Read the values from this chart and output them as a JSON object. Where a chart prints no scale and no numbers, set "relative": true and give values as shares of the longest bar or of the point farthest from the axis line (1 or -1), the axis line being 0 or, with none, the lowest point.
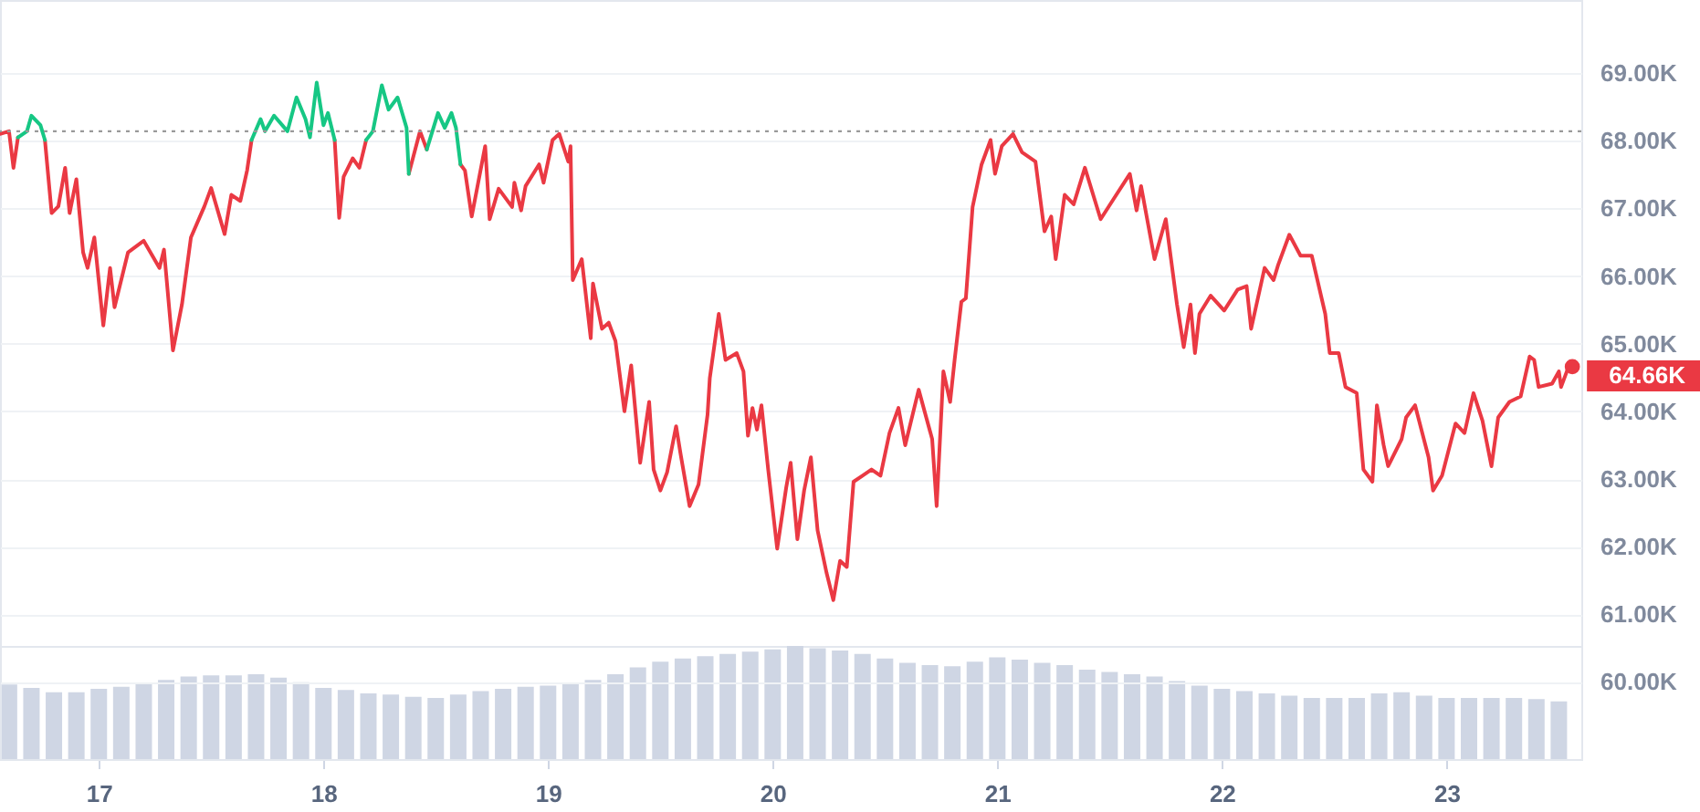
{
  "chart_data": [
    {
      "type": "line",
      "xlim": [
        16.56,
        23.6
      ],
      "xticks": [
        17,
        18,
        19,
        20,
        21,
        22,
        23
      ],
      "ylim": [
        58.86,
        70.08
      ],
      "yticks": [
        {
          "value": 60,
          "label": "60.00K"
        },
        {
          "value": 61,
          "label": "61.00K"
        },
        {
          "value": 62,
          "label": "62.00K"
        },
        {
          "value": 63,
          "label": "63.00K"
        },
        {
          "value": 64,
          "label": "64.00K"
        },
        {
          "value": 65,
          "label": "65.00K"
        },
        {
          "value": 66,
          "label": "66.00K"
        },
        {
          "value": 67,
          "label": "67.00K"
        },
        {
          "value": 68,
          "label": "68.00K"
        },
        {
          "value": 69,
          "label": "69.00K"
        }
      ],
      "grid": "y",
      "tick_labels": "y",
      "ref_lines": [
        {
          "axis": "y",
          "value": 68.14,
          "line_style": "dotted",
          "color": "#9a9a9a"
        }
      ],
      "annotations": [
        {
          "text": "64.66K",
          "x": 23.56,
          "y": 64.66
        }
      ],
      "x": [
        16.56,
        16.6,
        16.62,
        16.64,
        16.68,
        16.7,
        16.74,
        16.76,
        16.79,
        16.82,
        16.85,
        16.87,
        16.9,
        16.93,
        16.95,
        16.98,
        17.02,
        17.05,
        17.07,
        17.13,
        17.2,
        17.27,
        17.29,
        17.33,
        17.37,
        17.41,
        17.47,
        17.5,
        17.56,
        17.59,
        17.63,
        17.66,
        17.68,
        17.72,
        17.74,
        17.78,
        17.84,
        17.88,
        17.92,
        17.94,
        17.97,
        18.0,
        18.02,
        18.05,
        18.07,
        18.09,
        18.13,
        18.16,
        18.19,
        18.22,
        18.26,
        18.29,
        18.33,
        18.37,
        18.38,
        18.43,
        18.46,
        18.51,
        18.54,
        18.57,
        18.59,
        18.61,
        18.63,
        18.66,
        18.72,
        18.74,
        18.78,
        18.84,
        18.85,
        18.88,
        18.9,
        18.96,
        18.98,
        19.02,
        19.05,
        19.09,
        19.1,
        19.11,
        19.15,
        19.19,
        19.2,
        19.24,
        19.27,
        19.3,
        19.34,
        19.37,
        19.41,
        19.45,
        19.47,
        19.5,
        19.53,
        19.57,
        19.59,
        19.63,
        19.67,
        19.71,
        19.72,
        19.76,
        19.79,
        19.84,
        19.87,
        19.89,
        19.91,
        19.93,
        19.95,
        19.98,
        20.02,
        20.06,
        20.08,
        20.11,
        20.14,
        20.17,
        20.2,
        20.24,
        20.27,
        20.3,
        20.33,
        20.36,
        20.4,
        20.44,
        20.48,
        20.52,
        20.56,
        20.59,
        20.65,
        20.71,
        20.73,
        20.76,
        20.79,
        20.81,
        20.84,
        20.86,
        20.89,
        20.93,
        20.97,
        20.99,
        21.02,
        21.07,
        21.11,
        21.17,
        21.21,
        21.24,
        21.26,
        21.3,
        21.34,
        21.39,
        21.46,
        21.52,
        21.59,
        21.62,
        21.64,
        21.7,
        21.75,
        21.8,
        21.83,
        21.86,
        21.88,
        21.9,
        21.95,
        22.01,
        22.07,
        22.11,
        22.13,
        22.19,
        22.23,
        22.25,
        22.3,
        22.35,
        22.4,
        22.46,
        22.48,
        22.52,
        22.55,
        22.6,
        22.63,
        22.67,
        22.69,
        22.72,
        22.74,
        22.8,
        22.82,
        22.86,
        22.92,
        22.94,
        22.98,
        23.04,
        23.08,
        23.12,
        23.16,
        23.2,
        23.23,
        23.28,
        23.33,
        23.37,
        23.39,
        23.41,
        23.47,
        23.5,
        23.51,
        23.54,
        23.56
      ],
      "series": [
        {
          "type": "line",
          "color": "#ea3943",
          "values": [
            68.1,
            68.14,
            67.6,
            68.05,
            null,
            null,
            null,
            68.01,
            66.93,
            67.03,
            67.6,
            66.93,
            67.43,
            66.35,
            66.12,
            66.57,
            65.27,
            66.12,
            65.54,
            66.35,
            66.52,
            66.12,
            66.39,
            64.9,
            65.58,
            66.57,
            67.03,
            67.3,
            66.62,
            67.2,
            67.11,
            67.56,
            68.01,
            null,
            null,
            null,
            null,
            null,
            null,
            null,
            null,
            null,
            null,
            68.01,
            66.86,
            67.47,
            67.74,
            67.6,
            68.01,
            null,
            null,
            null,
            null,
            null,
            67.51,
            68.14,
            67.87,
            null,
            null,
            null,
            null,
            67.65,
            67.56,
            66.88,
            67.92,
            66.84,
            67.29,
            67.02,
            67.38,
            66.97,
            67.33,
            67.65,
            67.38,
            68.01,
            68.1,
            67.69,
            67.92,
            65.94,
            66.25,
            65.08,
            65.89,
            65.22,
            65.31,
            65.04,
            64.0,
            64.68,
            63.24,
            64.14,
            63.14,
            62.83,
            63.1,
            63.78,
            63.37,
            62.6,
            62.92,
            63.95,
            64.49,
            65.44,
            64.76,
            64.86,
            64.59,
            63.64,
            64.05,
            63.73,
            64.09,
            63.14,
            61.97,
            62.87,
            63.24,
            62.11,
            62.83,
            63.32,
            62.24,
            61.61,
            61.21,
            61.79,
            61.7,
            62.96,
            63.05,
            63.14,
            63.05,
            63.68,
            64.05,
            63.5,
            64.32,
            63.59,
            62.6,
            64.59,
            64.14,
            64.76,
            65.62,
            65.67,
            67.02,
            67.65,
            68.01,
            67.51,
            67.92,
            68.1,
            67.83,
            67.69,
            66.66,
            66.88,
            66.25,
            67.2,
            67.06,
            67.6,
            66.84,
            67.15,
            67.51,
            66.97,
            67.33,
            66.25,
            66.84,
            65.58,
            64.95,
            65.58,
            64.86,
            65.44,
            65.71,
            65.49,
            65.8,
            65.85,
            65.22,
            66.12,
            65.94,
            66.16,
            66.61,
            66.3,
            66.3,
            65.44,
            64.86,
            64.86,
            64.36,
            64.27,
            63.14,
            62.96,
            64.09,
            63.5,
            63.19,
            63.59,
            63.91,
            64.09,
            63.32,
            62.83,
            63.05,
            63.82,
            63.68,
            64.27,
            63.86,
            63.19,
            63.91,
            64.14,
            64.22,
            64.81,
            64.76,
            64.36,
            64.41,
            64.59,
            64.36,
            64.63,
            64.66
          ]
        },
        {
          "type": "line",
          "color": "#16c784",
          "x": [
            16.64,
            16.68,
            16.7,
            16.74,
            16.76,
            16.77,
            17.68,
            17.72,
            17.74,
            17.78,
            17.84,
            17.88,
            17.92,
            17.94,
            17.97,
            18.0,
            18.02,
            18.05,
            18.06,
            18.19,
            18.22,
            18.26,
            18.29,
            18.33,
            18.37,
            18.38,
            18.4,
            18.46,
            18.51,
            18.54,
            18.57,
            18.59,
            18.61
          ],
          "values": [
            68.05,
            68.14,
            68.37,
            68.23,
            68.01,
            null,
            68.01,
            68.32,
            68.14,
            68.37,
            68.14,
            68.64,
            68.32,
            68.05,
            68.86,
            68.23,
            68.41,
            68.01,
            null,
            68.01,
            68.14,
            68.82,
            68.46,
            68.64,
            68.19,
            67.51,
            null,
            67.87,
            68.41,
            68.19,
            68.41,
            68.19,
            67.65
          ]
        },
        {
          "type": "scatter",
          "marker": "circle",
          "color": "#ea3943",
          "x": [
            23.56
          ],
          "values": [
            64.66
          ]
        }
      ]
    },
    {
      "type": "bar",
      "relative": true,
      "color": "#cfd6e4",
      "xlim": [
        16.56,
        23.6
      ],
      "xticks": [
        17,
        18,
        19,
        20,
        21,
        22,
        23
      ],
      "tick_labels": "x",
      "x": [
        16.6,
        16.7,
        16.8,
        16.9,
        17.0,
        17.1,
        17.2,
        17.3,
        17.4,
        17.5,
        17.6,
        17.7,
        17.8,
        17.9,
        18.0,
        18.1,
        18.2,
        18.3,
        18.4,
        18.5,
        18.6,
        18.7,
        18.8,
        18.9,
        19.0,
        19.1,
        19.2,
        19.3,
        19.4,
        19.5,
        19.6,
        19.7,
        19.8,
        19.9,
        20.0,
        20.1,
        20.2,
        20.3,
        20.4,
        20.5,
        20.6,
        20.7,
        20.8,
        20.9,
        21.0,
        21.1,
        21.2,
        21.3,
        21.4,
        21.5,
        21.6,
        21.7,
        21.8,
        21.9,
        22.0,
        22.1,
        22.2,
        22.3,
        22.4,
        22.5,
        22.6,
        22.7,
        22.8,
        22.9,
        23.0,
        23.1,
        23.2,
        23.3,
        23.4,
        23.5
      ],
      "values": [
        0.66,
        0.63,
        0.59,
        0.59,
        0.62,
        0.64,
        0.67,
        0.7,
        0.73,
        0.74,
        0.74,
        0.75,
        0.72,
        0.68,
        0.63,
        0.61,
        0.58,
        0.57,
        0.55,
        0.54,
        0.57,
        0.6,
        0.62,
        0.64,
        0.65,
        0.67,
        0.7,
        0.75,
        0.81,
        0.86,
        0.89,
        0.91,
        0.93,
        0.95,
        0.97,
        1,
        0.98,
        0.96,
        0.93,
        0.89,
        0.85,
        0.83,
        0.82,
        0.86,
        0.9,
        0.88,
        0.85,
        0.83,
        0.79,
        0.77,
        0.75,
        0.73,
        0.69,
        0.65,
        0.62,
        0.6,
        0.58,
        0.56,
        0.54,
        0.54,
        0.54,
        0.58,
        0.59,
        0.56,
        0.54,
        0.54,
        0.54,
        0.54,
        0.53,
        0.51
      ]
    }
  ]
}
